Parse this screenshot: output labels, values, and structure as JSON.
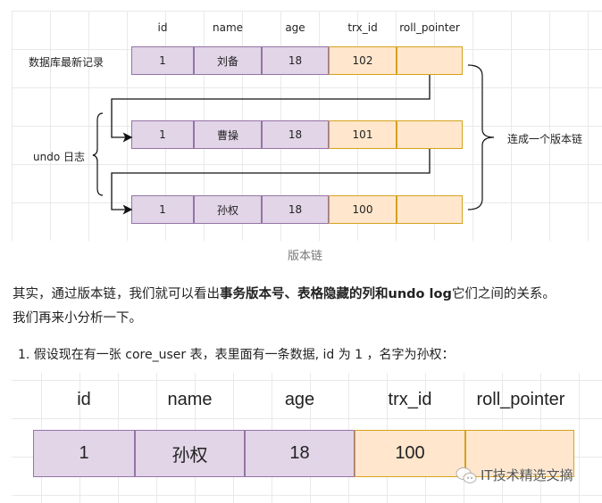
{
  "diagram": {
    "columns": [
      "id",
      "name",
      "age",
      "trx_id",
      "roll_pointer"
    ],
    "rows": [
      {
        "id": "1",
        "name": "刘备",
        "age": "18",
        "trx_id": "102",
        "roll_pointer": ""
      },
      {
        "id": "1",
        "name": "曹操",
        "age": "18",
        "trx_id": "101",
        "roll_pointer": ""
      },
      {
        "id": "1",
        "name": "孙权",
        "age": "18",
        "trx_id": "100",
        "roll_pointer": ""
      }
    ],
    "latest_label": "数据库最新记录",
    "undo_label": "undo 日志",
    "chain_label": "连成一个版本链",
    "caption": "版本链"
  },
  "paragraph": {
    "part1": "其实，通过版本链，我们就可以看出",
    "bold": "事务版本号、表格隐藏的列和undo log",
    "part2": "它们之间的关系。",
    "line2": "我们再来小分析一下。"
  },
  "list_item": "1. 假设现在有一张 core_user 表，表里面有一条数据, id 为 1 ，名字为孙权：",
  "table2": {
    "columns": [
      "id",
      "name",
      "age",
      "trx_id",
      "roll_pointer"
    ],
    "row": {
      "id": "1",
      "name": "孙权",
      "age": "18",
      "trx_id": "100",
      "roll_pointer": ""
    }
  },
  "watermark": "IT技术精选文摘",
  "colors": {
    "purple_fill": "#e1d5e7",
    "purple_border": "#9673a6",
    "orange_fill": "#ffe6cc",
    "orange_border": "#d6a21e"
  }
}
